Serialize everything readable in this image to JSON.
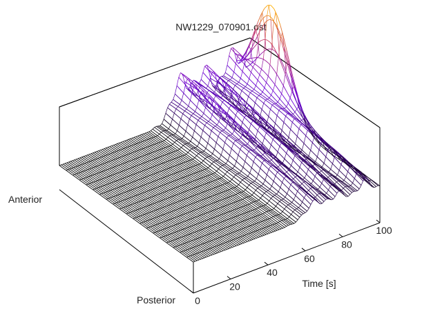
{
  "chart_data": {
    "type": "surface",
    "title": "NW1229_070901.ost",
    "xlabel": "Time [s]",
    "xlim": [
      0,
      100
    ],
    "xticks": [
      "0",
      "20",
      "40",
      "60",
      "80",
      "100"
    ],
    "ylabels": {
      "front": "Posterior",
      "back": "Anterior"
    },
    "onset_time": 48,
    "surface_peak_times": [
      64,
      78,
      92
    ],
    "highest_peak_time": 98,
    "colormap": [
      "#000000",
      "#6a00d8",
      "#c0306a",
      "#ffb000"
    ],
    "grid": false
  }
}
